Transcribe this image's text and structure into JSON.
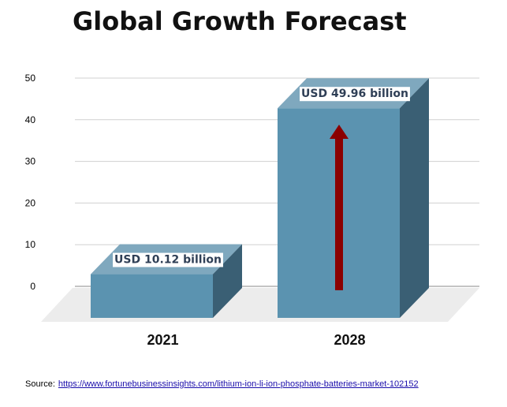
{
  "title": "Global Growth Forecast",
  "source": {
    "label": "Source:",
    "link": "https://www.fortunebusinessinsights.com/lithium-ion-li-ion-phosphate-batteries-market-102152"
  },
  "colors": {
    "bar_front": "#5b93b0",
    "bar_top": "#7fa8be",
    "bar_side": "#3a5f74",
    "floor": "#ececec",
    "arrow": "#8b0000",
    "gridline": "#d0d0d0"
  },
  "chart_data": {
    "type": "bar",
    "style": "3d",
    "categories": [
      "2021",
      "2028"
    ],
    "values": [
      10.12,
      49.96
    ],
    "data_labels": [
      "USD 10.12 billion",
      "USD 49.96 billion"
    ],
    "ylim": [
      0,
      50
    ],
    "yticks": [
      0,
      10,
      20,
      30,
      40,
      50
    ],
    "grid": true,
    "annotation": "upward-arrow"
  }
}
